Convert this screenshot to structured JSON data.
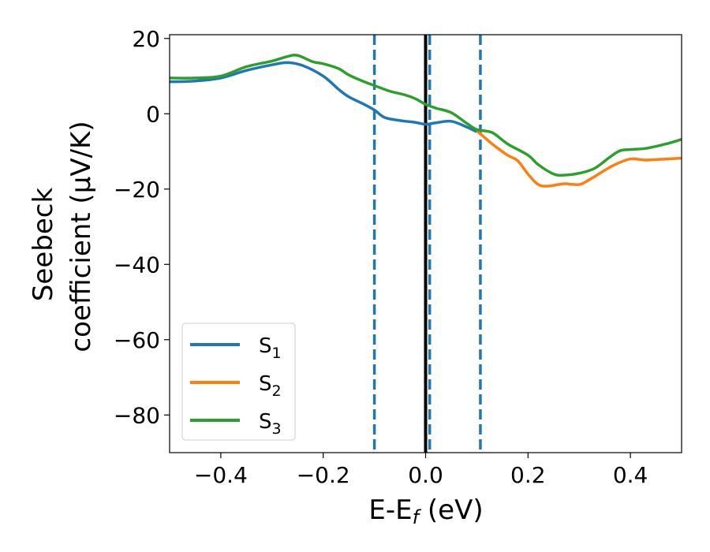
{
  "chart_data": {
    "type": "line",
    "xlabel": "E-E",
    "xlabel_sub": "f",
    "xlabel_unit": " (eV)",
    "ylabel_line1": "Seebeck",
    "ylabel_line2": "coefficient  (μV/K)",
    "xlim": [
      -0.5,
      0.5
    ],
    "ylim": [
      -90,
      21
    ],
    "x_ticks": [
      {
        "value": -0.4,
        "label": "−0.4"
      },
      {
        "value": -0.2,
        "label": "−0.2"
      },
      {
        "value": 0.0,
        "label": "0.0"
      },
      {
        "value": 0.2,
        "label": "0.2"
      },
      {
        "value": 0.4,
        "label": "0.4"
      }
    ],
    "y_ticks": [
      {
        "value": 20,
        "label": "20"
      },
      {
        "value": 0,
        "label": "0"
      },
      {
        "value": -20,
        "label": "−20"
      },
      {
        "value": -40,
        "label": "−40"
      },
      {
        "value": -60,
        "label": "−60"
      },
      {
        "value": -80,
        "label": "−80"
      }
    ],
    "grid": false,
    "legend_position": "lower-left",
    "vlines": [
      {
        "x": -0.1,
        "style": "dashed",
        "color": "#1f77b4"
      },
      {
        "x": 0.0,
        "style": "solid",
        "color": "#000000"
      },
      {
        "x": 0.008,
        "style": "dashed",
        "color": "#1f77b4"
      },
      {
        "x": 0.107,
        "style": "dashed",
        "color": "#1f77b4"
      }
    ],
    "series": [
      {
        "name": "S",
        "sub": "1",
        "color": "#1f77b4",
        "x": [
          -0.5,
          -0.45,
          -0.4,
          -0.35,
          -0.3,
          -0.27,
          -0.24,
          -0.2,
          -0.17,
          -0.15,
          -0.12,
          -0.1,
          -0.08,
          -0.05,
          -0.02,
          0.0,
          0.02,
          0.05,
          0.08,
          0.1
        ],
        "y": [
          8.5,
          8.7,
          9.5,
          11.5,
          13.0,
          13.6,
          12.8,
          10.0,
          6.5,
          4.5,
          2.5,
          1.0,
          -1.0,
          -1.8,
          -2.3,
          -2.8,
          -2.4,
          -2.0,
          -3.5,
          -4.8
        ]
      },
      {
        "name": "S",
        "sub": "2",
        "color": "#ff7f0e",
        "x": [
          0.1,
          0.13,
          0.16,
          0.18,
          0.2,
          0.22,
          0.24,
          0.27,
          0.3,
          0.32,
          0.35,
          0.37,
          0.4,
          0.43,
          0.47,
          0.5
        ],
        "y": [
          -4.5,
          -8.0,
          -11.0,
          -12.5,
          -16.0,
          -18.8,
          -19.2,
          -18.6,
          -18.8,
          -17.5,
          -15.0,
          -13.5,
          -12.0,
          -12.3,
          -12.0,
          -11.8
        ]
      },
      {
        "name": "S",
        "sub": "3",
        "color": "#2ca02c",
        "x": [
          -0.5,
          -0.45,
          -0.4,
          -0.35,
          -0.3,
          -0.27,
          -0.25,
          -0.22,
          -0.2,
          -0.17,
          -0.15,
          -0.12,
          -0.1,
          -0.07,
          -0.04,
          -0.02,
          0.0,
          0.02,
          0.05,
          0.08,
          0.1,
          0.13,
          0.16,
          0.2,
          0.22,
          0.25,
          0.27,
          0.3,
          0.33,
          0.36,
          0.38,
          0.4,
          0.43,
          0.47,
          0.5
        ],
        "y": [
          9.5,
          9.5,
          10.0,
          12.5,
          14.0,
          15.2,
          15.5,
          13.8,
          13.3,
          12.0,
          10.3,
          8.5,
          7.5,
          6.0,
          5.0,
          4.0,
          2.5,
          1.5,
          0.3,
          -2.5,
          -4.2,
          -5.0,
          -8.0,
          -11.0,
          -13.5,
          -16.0,
          -16.3,
          -15.8,
          -14.5,
          -11.5,
          -9.8,
          -9.5,
          -9.2,
          -8.0,
          -6.8
        ]
      }
    ]
  }
}
